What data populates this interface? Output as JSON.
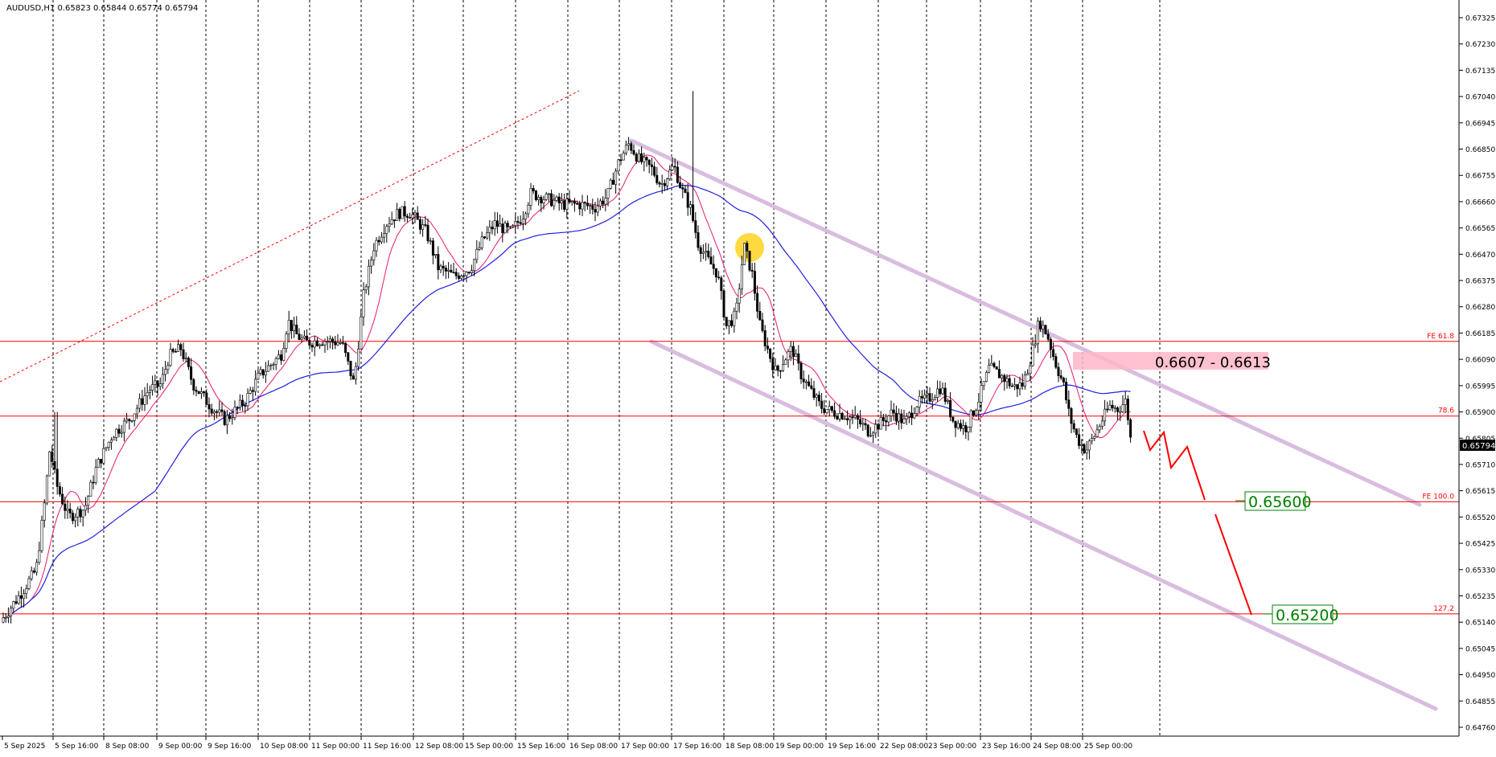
{
  "chart_data": {
    "type": "candlestick",
    "title": "AUDUSD,H1  0.65823 0.65844 0.65774 0.65794",
    "y_ticks": [
      "0.67325",
      "0.67230",
      "0.67135",
      "0.67040",
      "0.66945",
      "0.66850",
      "0.66755",
      "0.66660",
      "0.66565",
      "0.66470",
      "0.66375",
      "0.66280",
      "0.66185",
      "0.66090",
      "0.65995",
      "0.65900",
      "0.65805",
      "0.65710",
      "0.65615",
      "0.65520",
      "0.65425",
      "0.65330",
      "0.65235",
      "0.65140",
      "0.65045",
      "0.64950",
      "0.64855",
      "0.64760"
    ],
    "ylim": [
      0.6476,
      0.67325
    ],
    "current_price": "0.65794",
    "x_ticks": [
      "5 Sep 2025",
      "5 Sep 16:00",
      "8 Sep 08:00",
      "9 Sep 00:00",
      "9 Sep 16:00",
      "10 Sep 08:00",
      "11 Sep 00:00",
      "11 Sep 16:00",
      "12 Sep 08:00",
      "15 Sep 00:00",
      "15 Sep 16:00",
      "16 Sep 08:00",
      "17 Sep 00:00",
      "17 Sep 16:00",
      "18 Sep 08:00",
      "19 Sep 00:00",
      "19 Sep 16:00",
      "22 Sep 08:00",
      "23 Sep 00:00",
      "23 Sep 16:00",
      "24 Sep 08:00",
      "25 Sep 00:00"
    ],
    "horizontal_levels": [
      {
        "price": 0.66155,
        "label": "FE 61.8"
      },
      {
        "price": 0.65885,
        "label": "78.6"
      },
      {
        "price": 0.65575,
        "label": "FE 100.0"
      },
      {
        "price": 0.6517,
        "label": "127.2"
      }
    ],
    "annotations": {
      "zone_label": "0.6607 - 0.6613",
      "target_1": "0.65600",
      "target_2": "0.65200"
    },
    "series": [
      {
        "name": "",
        "color": "#e8196e"
      },
      {
        "name": "",
        "color": "#2020e0"
      }
    ],
    "colors": {
      "background": "#ffffff",
      "candle": "#000000",
      "level_line": "#ff0000",
      "channel": "#d9bde0",
      "target_text": "#008000",
      "zone": "#ffb6c8",
      "marker": "#ffd21f"
    }
  }
}
